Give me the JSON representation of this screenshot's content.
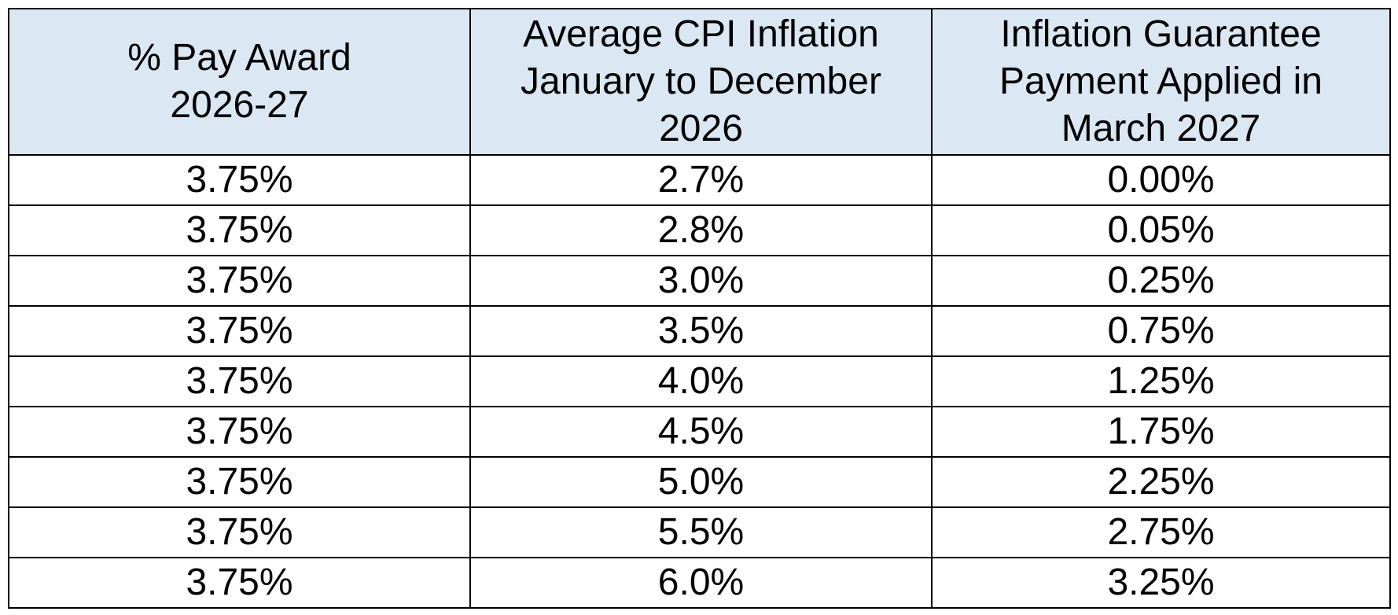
{
  "table": {
    "header_background": "#dce7f4",
    "headers": [
      [
        "% Pay Award",
        "2026-27"
      ],
      [
        "Average CPI Inflation",
        "January to December",
        "2026"
      ],
      [
        "Inflation Guarantee",
        "Payment Applied in",
        "March 2027"
      ]
    ],
    "rows": [
      [
        "3.75%",
        "2.7%",
        "0.00%"
      ],
      [
        "3.75%",
        "2.8%",
        "0.05%"
      ],
      [
        "3.75%",
        "3.0%",
        "0.25%"
      ],
      [
        "3.75%",
        "3.5%",
        "0.75%"
      ],
      [
        "3.75%",
        "4.0%",
        "1.25%"
      ],
      [
        "3.75%",
        "4.5%",
        "1.75%"
      ],
      [
        "3.75%",
        "5.0%",
        "2.25%"
      ],
      [
        "3.75%",
        "5.5%",
        "2.75%"
      ],
      [
        "3.75%",
        "6.0%",
        "3.25%"
      ]
    ]
  }
}
